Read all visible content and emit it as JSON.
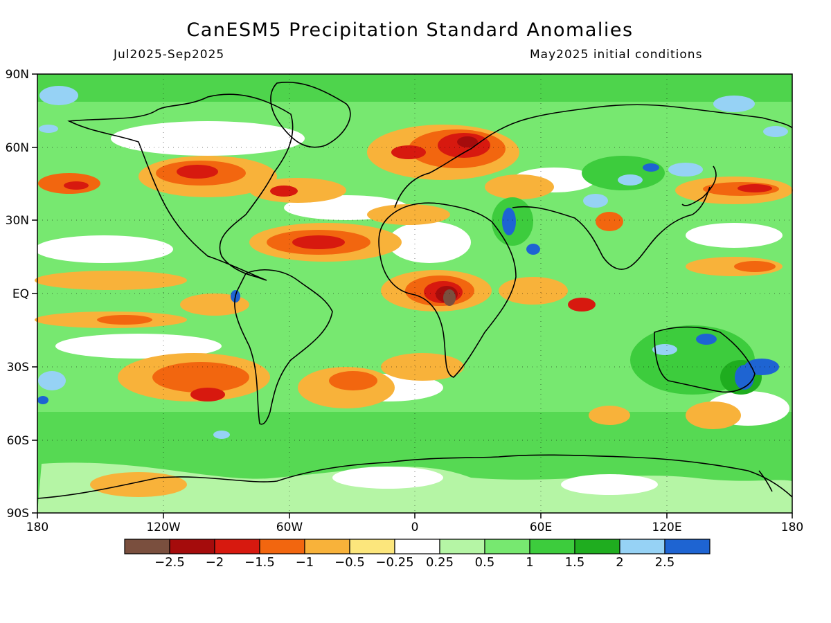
{
  "title": "CanESM5 Precipitation Standard Anomalies",
  "period": "Jul2025-Sep2025",
  "init": "May2025 initial conditions",
  "lon_ticks": [
    "180",
    "120W",
    "60W",
    "0",
    "60E",
    "120E",
    "180"
  ],
  "lat_ticks": [
    "90N",
    "60N",
    "30N",
    "EQ",
    "30S",
    "60S",
    "90S"
  ],
  "colorbar": {
    "colors": [
      "#7a4f3e",
      "#a50c0c",
      "#d7190f",
      "#f2660f",
      "#f8b23a",
      "#fce67c",
      "#ffffff",
      "#b5f5a5",
      "#77e870",
      "#3dcc3d",
      "#1fad1f",
      "#96d2f5",
      "#1e64d2"
    ],
    "labels": [
      "−2.5",
      "−2",
      "−1.5",
      "−1",
      "−0.5",
      "−0.25",
      "0.25",
      "0.5",
      "1",
      "1.5",
      "2",
      "2.5"
    ]
  },
  "field_colors": {
    "dry_strong": "#d7190f",
    "dry": "#f2660f",
    "dry_weak": "#f8b23a",
    "near_zero": "#fce67c",
    "neutral": "#ffffff",
    "wet_weak": "#b5f5a5",
    "wet": "#77e870",
    "wet_strong": "#3dcc3d",
    "wet_vstrong": "#1fad1f",
    "wet_extreme": "#96d2f5",
    "wet_max": "#1e64d2",
    "dry_max": "#7a4f3e"
  }
}
